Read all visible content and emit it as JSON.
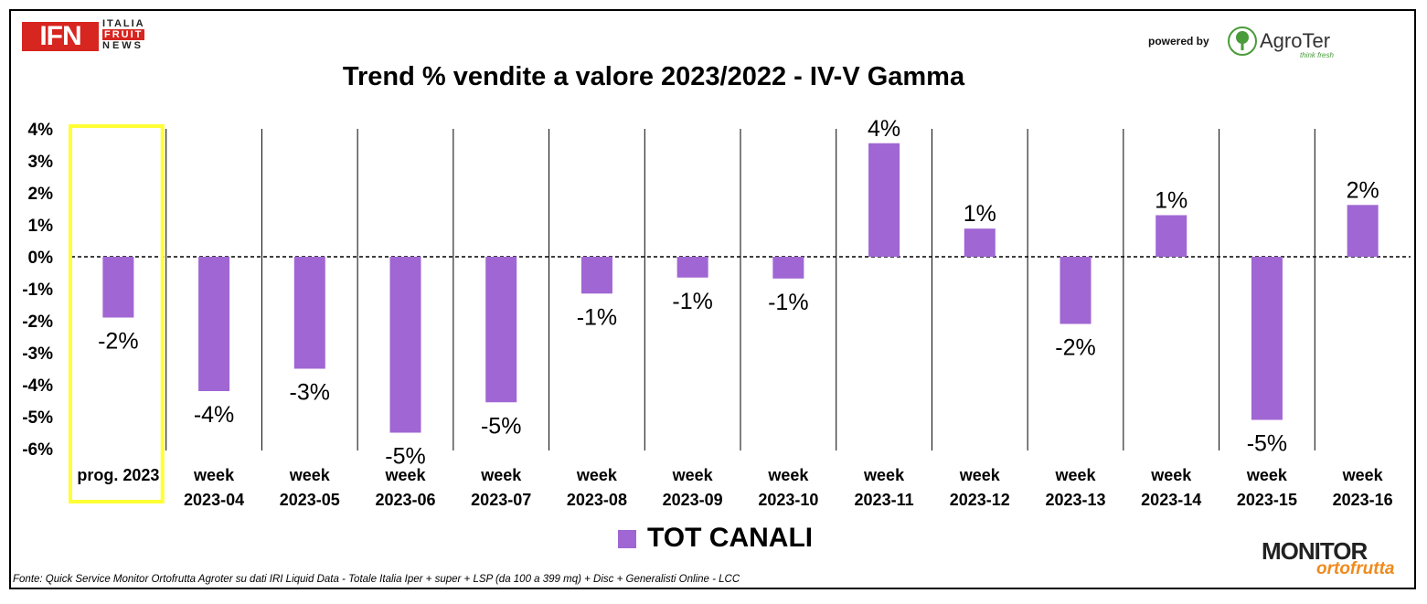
{
  "header": {
    "logo_ifn_main": "IFN",
    "logo_ifn_line1": "ITALIA",
    "logo_ifn_line2": "FRUIT",
    "logo_ifn_line3": "NEWS",
    "powered_by": "powered by",
    "sponsor_name": "AgroTer",
    "sponsor_tagline": "think fresh"
  },
  "footer": {
    "source": "Fonte: Quick Service Monitor Ortofrutta Agroter su dati IRI Liquid Data - Totale Italia Iper + super + LSP (da 100 a 399 mq) + Disc + Generalisti Online - LCC",
    "monitor_logo_top": "MONITOR",
    "monitor_logo_bottom": "ortofrutta"
  },
  "colors": {
    "bar": "#a066d3",
    "highlight": "#ffff33",
    "text": "#000000"
  },
  "chart_data": {
    "type": "bar",
    "title": "Trend % vendite a valore 2023/2022 - IV-V Gamma",
    "xlabel": "",
    "ylabel": "",
    "ylim": [
      -6,
      4
    ],
    "yticks": [
      "4%",
      "3%",
      "2%",
      "1%",
      "0%",
      "-1%",
      "-2%",
      "-3%",
      "-4%",
      "-5%",
      "-6%"
    ],
    "grid": "vertical separators",
    "legend_position": "bottom",
    "categories": [
      [
        "prog. 2023"
      ],
      [
        "week",
        "2023-04"
      ],
      [
        "week",
        "2023-05"
      ],
      [
        "week",
        "2023-06"
      ],
      [
        "week",
        "2023-07"
      ],
      [
        "week",
        "2023-08"
      ],
      [
        "week",
        "2023-09"
      ],
      [
        "week",
        "2023-10"
      ],
      [
        "week",
        "2023-11"
      ],
      [
        "week",
        "2023-12"
      ],
      [
        "week",
        "2023-13"
      ],
      [
        "week",
        "2023-14"
      ],
      [
        "week",
        "2023-15"
      ],
      [
        "week",
        "2023-16"
      ]
    ],
    "highlighted_category": 0,
    "series": [
      {
        "name": "TOT CANALI",
        "values": [
          -1.9,
          -4.2,
          -3.5,
          -5.5,
          -4.55,
          -1.15,
          -0.65,
          -0.68,
          3.55,
          0.88,
          -2.1,
          1.3,
          -5.1,
          1.62
        ],
        "data_labels": [
          "-2%",
          "-4%",
          "-3%",
          "-5%",
          "-5%",
          "-1%",
          "-1%",
          "-1%",
          "4%",
          "1%",
          "-2%",
          "1%",
          "-5%",
          "2%"
        ]
      }
    ]
  }
}
